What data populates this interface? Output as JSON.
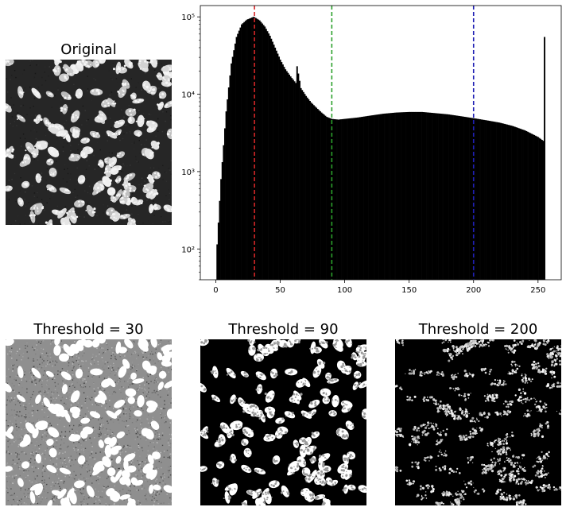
{
  "panels": {
    "original": {
      "title": "Original"
    },
    "thresholds": [
      {
        "title": "Threshold = 30",
        "value": 30
      },
      {
        "title": "Threshold = 90",
        "value": 90
      },
      {
        "title": "Threshold = 200",
        "value": 200
      }
    ]
  },
  "colors": {
    "bars": "#000000",
    "line_30": "#d62728",
    "line_90": "#2ca02c",
    "line_200": "#1f1fb4"
  },
  "chart_data": {
    "type": "bar",
    "title": "",
    "xlabel": "",
    "ylabel": "",
    "yscale": "log",
    "xlim": [
      -12,
      268
    ],
    "ylim": [
      40,
      140000
    ],
    "xticks": [
      0,
      50,
      100,
      150,
      200,
      250
    ],
    "ytick_labels": [
      "10²",
      "10³",
      "10⁴",
      "10⁵"
    ],
    "ytick_values": [
      100,
      1000,
      10000,
      100000
    ],
    "threshold_lines": [
      30,
      90,
      200
    ],
    "bins_x": [
      0,
      4,
      8,
      12,
      16,
      20,
      24,
      28,
      29,
      30,
      34,
      38,
      42,
      46,
      50,
      54,
      58,
      62,
      63,
      66,
      70,
      74,
      78,
      82,
      86,
      90,
      95,
      100,
      110,
      120,
      130,
      140,
      150,
      160,
      170,
      180,
      190,
      200,
      210,
      220,
      230,
      240,
      250,
      254,
      255
    ],
    "bins_y": [
      60,
      800,
      6000,
      25000,
      55000,
      80000,
      92000,
      98000,
      100000,
      99000,
      90000,
      75000,
      57000,
      40000,
      28000,
      21000,
      17000,
      14000,
      23000,
      12000,
      9500,
      7800,
      6700,
      5800,
      5100,
      4800,
      4700,
      4800,
      5000,
      5300,
      5600,
      5800,
      5900,
      5900,
      5700,
      5500,
      5200,
      4900,
      4600,
      4300,
      3900,
      3400,
      2800,
      2500,
      55000
    ]
  }
}
